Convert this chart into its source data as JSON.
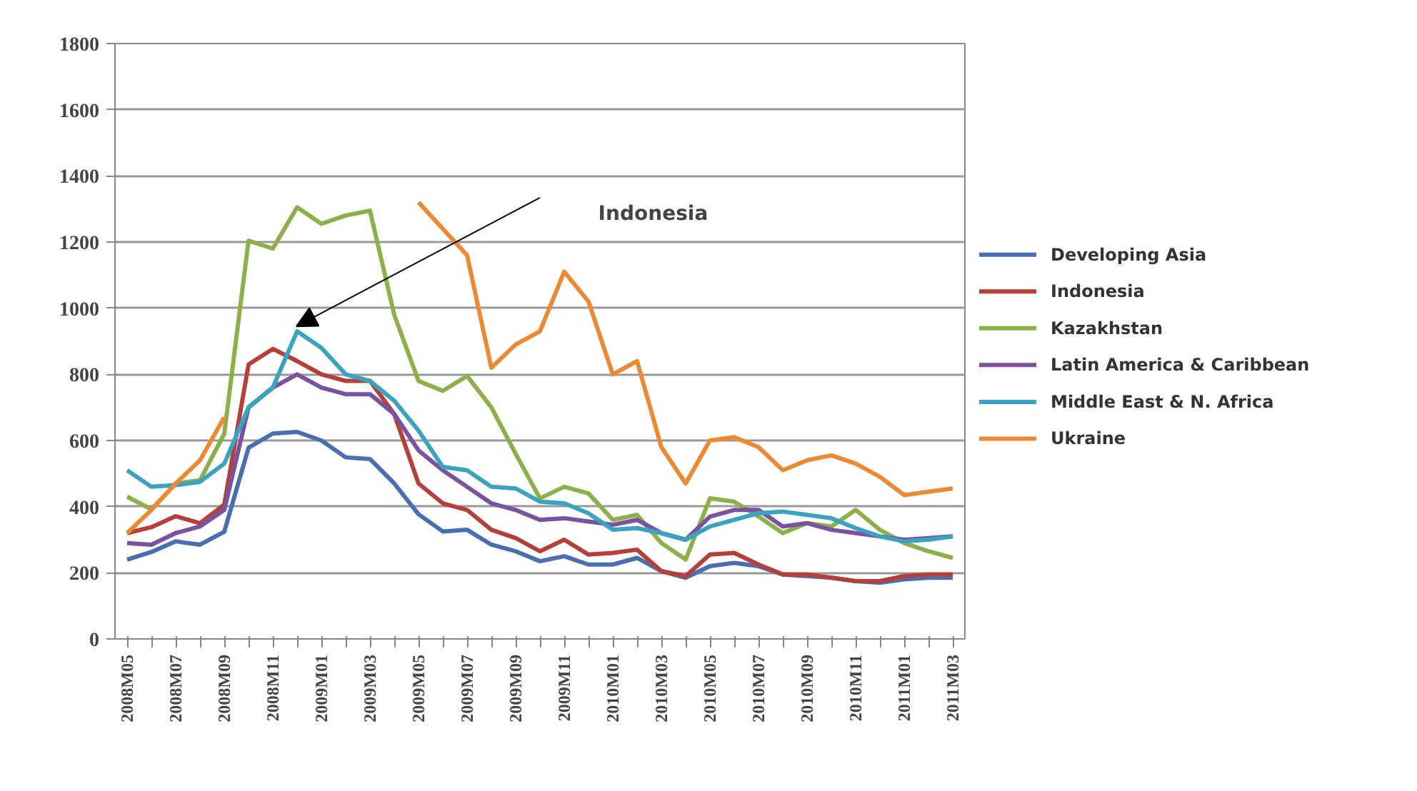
{
  "chart_data": {
    "type": "line",
    "categories": [
      "2008M05",
      null,
      "2008M07",
      null,
      "2008M09",
      null,
      "2008M11",
      null,
      "2009M01",
      null,
      "2009M03",
      null,
      "2009M05",
      null,
      "2009M07",
      null,
      "2009M09",
      null,
      "2009M11",
      null,
      "2010M01",
      null,
      "2010M03",
      null,
      "2010M05",
      null,
      "2010M07",
      null,
      "2010M09",
      null,
      "2010M11",
      null,
      "2011M01",
      null,
      "2011M03"
    ],
    "series": [
      {
        "name": "Developing Asia",
        "color": "#4a6fb0",
        "values": [
          240,
          263,
          295,
          285,
          324,
          578,
          621,
          626,
          600,
          549,
          544,
          470,
          377,
          325,
          330,
          285,
          265,
          235,
          250,
          225,
          225,
          245,
          205,
          185,
          220,
          230,
          220,
          195,
          190,
          185,
          175,
          170,
          180,
          185,
          185
        ]
      },
      {
        "name": "Indonesia",
        "color": "#b5403a",
        "values": [
          320,
          338,
          371,
          350,
          406,
          830,
          877,
          840,
          800,
          780,
          780,
          680,
          470,
          410,
          390,
          330,
          305,
          265,
          300,
          255,
          260,
          270,
          205,
          190,
          255,
          260,
          225,
          195,
          195,
          185,
          175,
          175,
          190,
          195,
          195
        ]
      },
      {
        "name": "Kazakhstan",
        "color": "#8db04a",
        "values": [
          430,
          392,
          470,
          480,
          620,
          1204,
          1180,
          1305,
          1255,
          1280,
          1295,
          980,
          780,
          750,
          795,
          700,
          560,
          425,
          460,
          440,
          360,
          375,
          290,
          240,
          425,
          415,
          370,
          320,
          350,
          340,
          390,
          330,
          290,
          265,
          245
        ]
      },
      {
        "name": "Latin America & Caribbean",
        "color": "#7a52a0",
        "values": [
          290,
          285,
          320,
          340,
          390,
          700,
          760,
          800,
          760,
          740,
          740,
          680,
          570,
          510,
          460,
          410,
          390,
          360,
          365,
          355,
          345,
          360,
          320,
          300,
          370,
          390,
          390,
          340,
          350,
          330,
          320,
          310,
          300,
          305,
          310
        ]
      },
      {
        "name": "Middle East & N. Africa",
        "color": "#3aa3bf",
        "values": [
          510,
          460,
          465,
          475,
          530,
          700,
          760,
          930,
          880,
          800,
          780,
          720,
          630,
          520,
          510,
          460,
          455,
          415,
          410,
          380,
          330,
          335,
          320,
          300,
          340,
          360,
          380,
          385,
          375,
          365,
          335,
          310,
          295,
          300,
          310
        ]
      },
      {
        "name": "Ukraine",
        "color": "#ec8a33",
        "values": [
          320,
          390,
          470,
          540,
          670,
          null,
          null,
          null,
          null,
          null,
          null,
          null,
          1320,
          1240,
          1160,
          820,
          890,
          930,
          1110,
          1020,
          800,
          840,
          580,
          470,
          600,
          610,
          580,
          510,
          540,
          555,
          530,
          490,
          435,
          445,
          455
        ]
      }
    ],
    "ylim": [
      0,
      1800
    ],
    "yticks": [
      0,
      200,
      400,
      600,
      800,
      1000,
      1200,
      1400,
      1600,
      1800
    ],
    "grid": "y",
    "legend": "right",
    "annotations": [
      "Indonesia"
    ]
  }
}
